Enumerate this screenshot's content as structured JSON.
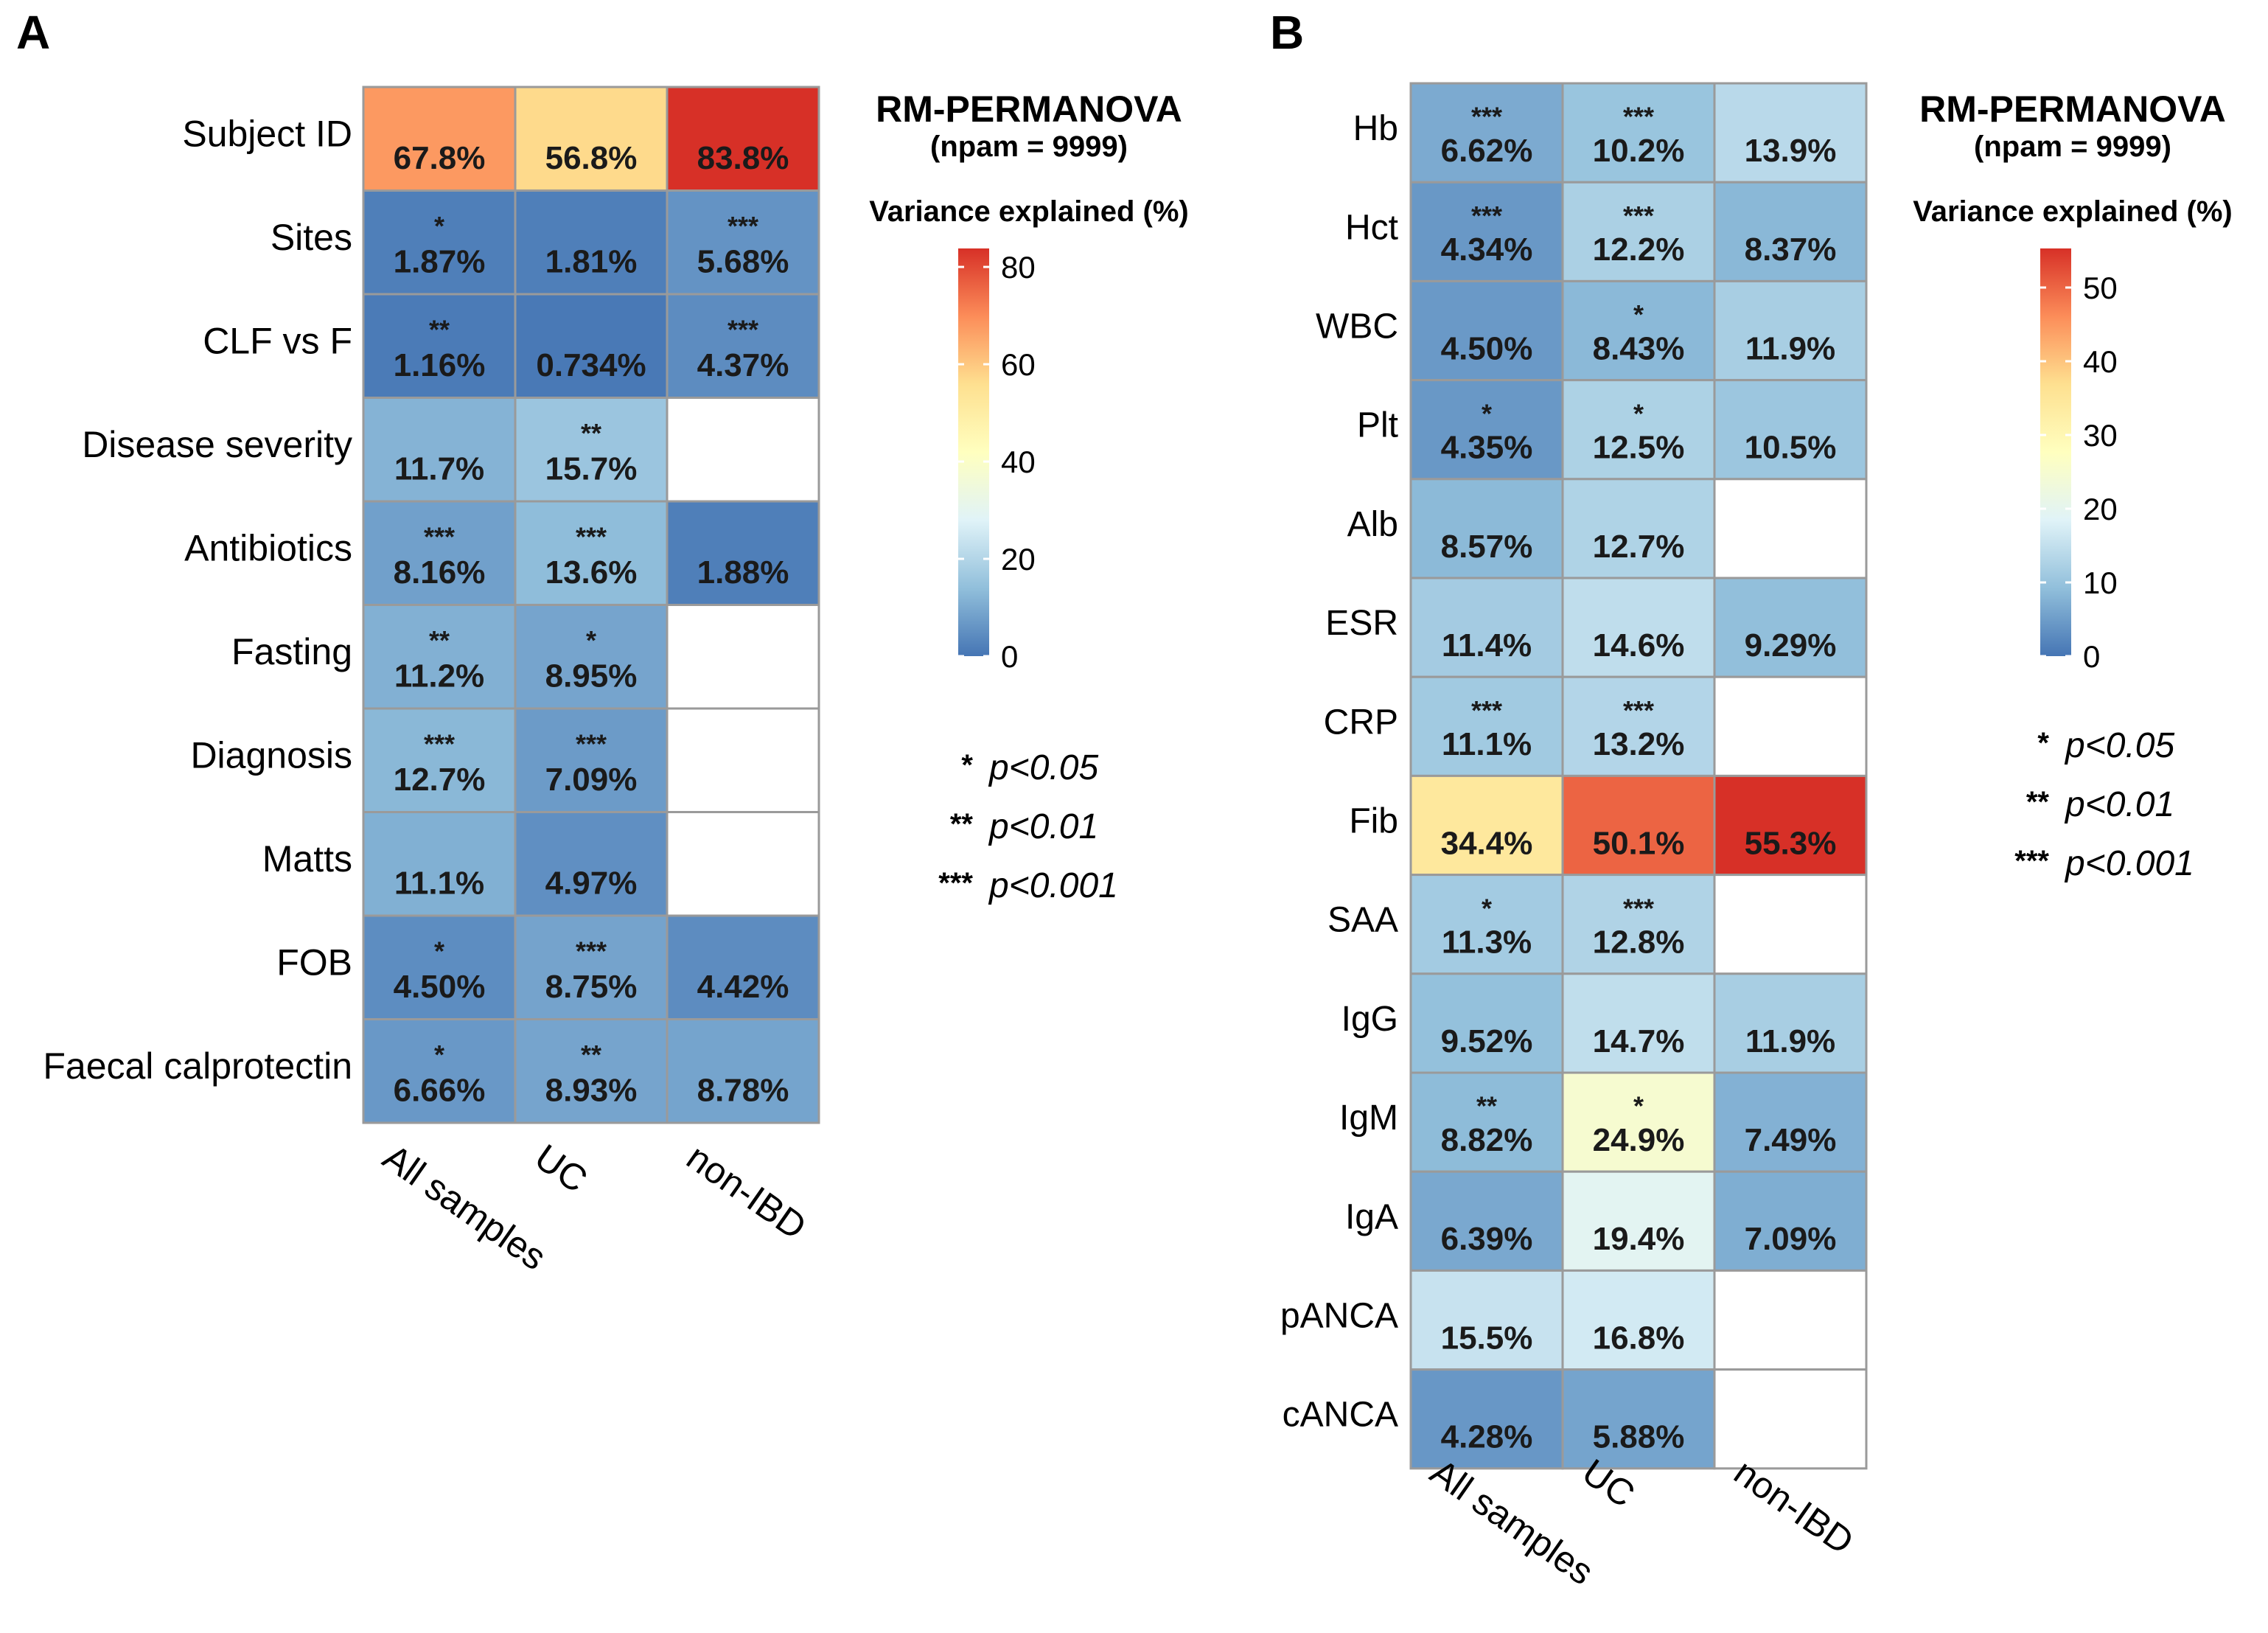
{
  "chart_data": [
    {
      "type": "heatmap",
      "panel": "A",
      "title": "RM-PERMANOVA",
      "subtitle": "(npam = 9999)",
      "legend_title": "Variance explained (%)",
      "columns": [
        "All samples",
        "UC",
        "non-IBD"
      ],
      "rows": [
        "Subject ID",
        "Sites",
        "CLF vs F",
        "Disease severity",
        "Antibiotics",
        "Fasting",
        "Diagnosis",
        "Matts",
        "FOB",
        "Faecal calprotectin"
      ],
      "values": [
        [
          67.8,
          56.8,
          83.8
        ],
        [
          1.87,
          1.81,
          5.68
        ],
        [
          1.16,
          0.734,
          4.37
        ],
        [
          11.7,
          15.7,
          null
        ],
        [
          8.16,
          13.6,
          1.88
        ],
        [
          11.2,
          8.95,
          null
        ],
        [
          12.7,
          7.09,
          null
        ],
        [
          11.1,
          4.97,
          null
        ],
        [
          4.5,
          8.75,
          4.42
        ],
        [
          6.66,
          8.93,
          8.78
        ]
      ],
      "labels": [
        [
          "67.8%",
          "56.8%",
          "83.8%"
        ],
        [
          "1.87%",
          "1.81%",
          "5.68%"
        ],
        [
          "1.16%",
          "0.734%",
          "4.37%"
        ],
        [
          "11.7%",
          "15.7%",
          ""
        ],
        [
          "8.16%",
          "13.6%",
          "1.88%"
        ],
        [
          "11.2%",
          "8.95%",
          ""
        ],
        [
          "12.7%",
          "7.09%",
          ""
        ],
        [
          "11.1%",
          "4.97%",
          ""
        ],
        [
          "4.50%",
          "8.75%",
          "4.42%"
        ],
        [
          "6.66%",
          "8.93%",
          "8.78%"
        ]
      ],
      "significance": [
        [
          "",
          "",
          ""
        ],
        [
          "*",
          "",
          "***"
        ],
        [
          "**",
          "",
          "***"
        ],
        [
          "",
          "**",
          ""
        ],
        [
          "***",
          "***",
          ""
        ],
        [
          "**",
          "*",
          ""
        ],
        [
          "***",
          "***",
          ""
        ],
        [
          "",
          "",
          ""
        ],
        [
          "*",
          "***",
          ""
        ],
        [
          "*",
          "**",
          ""
        ]
      ],
      "color_scale": {
        "min": 0,
        "max": 83.8,
        "ticks": [
          0,
          20,
          40,
          60,
          80
        ]
      }
    },
    {
      "type": "heatmap",
      "panel": "B",
      "title": "RM-PERMANOVA",
      "subtitle": "(npam = 9999)",
      "legend_title": "Variance explained (%)",
      "columns": [
        "All samples",
        "UC",
        "non-IBD"
      ],
      "rows": [
        "Hb",
        "Hct",
        "WBC",
        "Plt",
        "Alb",
        "ESR",
        "CRP",
        "Fib",
        "SAA",
        "IgG",
        "IgM",
        "IgA",
        "pANCA",
        "cANCA"
      ],
      "values": [
        [
          6.62,
          10.2,
          13.9
        ],
        [
          4.34,
          12.2,
          8.37
        ],
        [
          4.5,
          8.43,
          11.9
        ],
        [
          4.35,
          12.5,
          10.5
        ],
        [
          8.57,
          12.7,
          null
        ],
        [
          11.4,
          14.6,
          9.29
        ],
        [
          11.1,
          13.2,
          null
        ],
        [
          34.4,
          50.1,
          55.3
        ],
        [
          11.3,
          12.8,
          null
        ],
        [
          9.52,
          14.7,
          11.9
        ],
        [
          8.82,
          24.9,
          7.49
        ],
        [
          6.39,
          19.4,
          7.09
        ],
        [
          15.5,
          16.8,
          null
        ],
        [
          4.28,
          5.88,
          null
        ]
      ],
      "labels": [
        [
          "6.62%",
          "10.2%",
          "13.9%"
        ],
        [
          "4.34%",
          "12.2%",
          "8.37%"
        ],
        [
          "4.50%",
          "8.43%",
          "11.9%"
        ],
        [
          "4.35%",
          "12.5%",
          "10.5%"
        ],
        [
          "8.57%",
          "12.7%",
          ""
        ],
        [
          "11.4%",
          "14.6%",
          "9.29%"
        ],
        [
          "11.1%",
          "13.2%",
          ""
        ],
        [
          "34.4%",
          "50.1%",
          "55.3%"
        ],
        [
          "11.3%",
          "12.8%",
          ""
        ],
        [
          "9.52%",
          "14.7%",
          "11.9%"
        ],
        [
          "8.82%",
          "24.9%",
          "7.49%"
        ],
        [
          "6.39%",
          "19.4%",
          "7.09%"
        ],
        [
          "15.5%",
          "16.8%",
          ""
        ],
        [
          "4.28%",
          "5.88%",
          ""
        ]
      ],
      "significance": [
        [
          "***",
          "***",
          ""
        ],
        [
          "***",
          "***",
          ""
        ],
        [
          "",
          "*",
          ""
        ],
        [
          "*",
          "*",
          ""
        ],
        [
          "",
          "",
          ""
        ],
        [
          "",
          "",
          ""
        ],
        [
          "***",
          "***",
          ""
        ],
        [
          "",
          "",
          ""
        ],
        [
          "*",
          "***",
          ""
        ],
        [
          "",
          "",
          ""
        ],
        [
          "**",
          "*",
          ""
        ],
        [
          "",
          "",
          ""
        ],
        [
          "",
          "",
          ""
        ],
        [
          "",
          "",
          ""
        ]
      ],
      "color_scale": {
        "min": 0,
        "max": 55.3,
        "ticks": [
          0,
          10,
          20,
          30,
          40,
          50
        ]
      }
    }
  ],
  "p_legend": [
    {
      "stars": "*",
      "label": "p<0.05"
    },
    {
      "stars": "**",
      "label": "p<0.01"
    },
    {
      "stars": "***",
      "label": "p<0.001"
    }
  ],
  "palette": [
    "#4575b4",
    "#91bfdb",
    "#e0f3f8",
    "#ffffbf",
    "#fee090",
    "#fc8d59",
    "#d73027"
  ],
  "empty_cell_color": "#ffffff"
}
